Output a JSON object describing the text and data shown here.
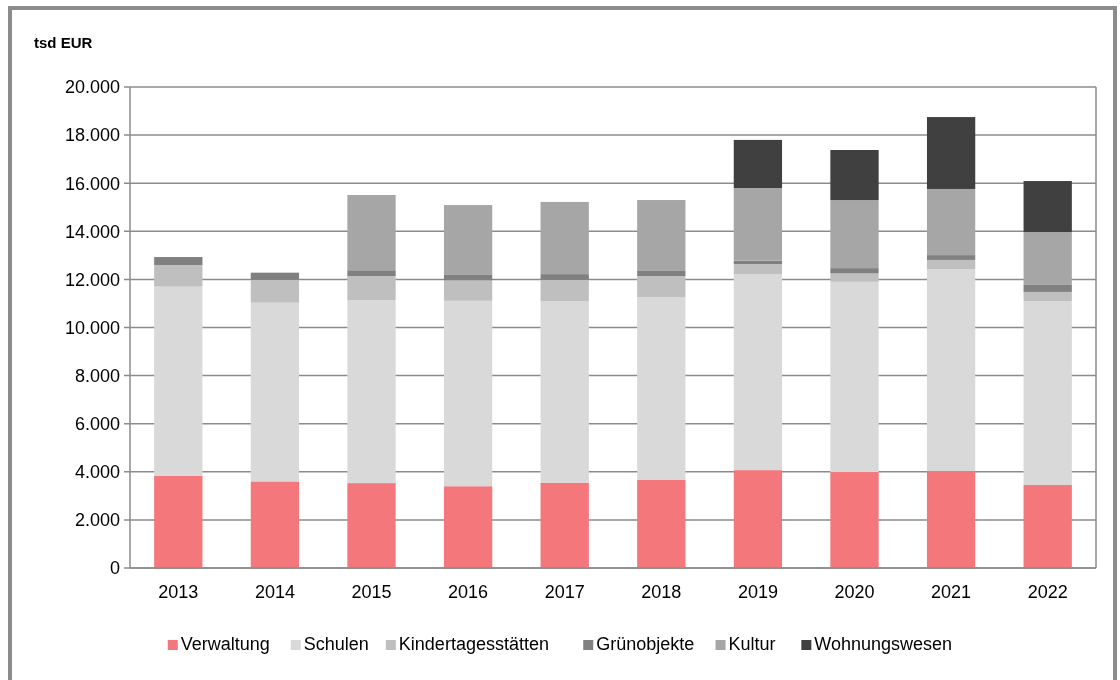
{
  "chart_data": {
    "type": "bar",
    "stacked": true,
    "ylabel": "tsd EUR",
    "categories": [
      "2013",
      "2014",
      "2015",
      "2016",
      "2017",
      "2018",
      "2019",
      "2020",
      "2021",
      "2022"
    ],
    "series": [
      {
        "name": "Verwaltung",
        "color": "#f4777b",
        "values": [
          3840,
          3600,
          3530,
          3400,
          3550,
          3660,
          4070,
          3990,
          4030,
          3450
        ]
      },
      {
        "name": "Schulen",
        "color": "#d9d9d9",
        "values": [
          7860,
          7430,
          7610,
          7710,
          7550,
          7610,
          8150,
          7910,
          8400,
          7650
        ]
      },
      {
        "name": "Kindertagesstätten",
        "color": "#bfbfbf",
        "values": [
          900,
          950,
          1000,
          850,
          880,
          870,
          420,
          350,
          380,
          380
        ]
      },
      {
        "name": "Grünobjekte",
        "color": "#808080",
        "values": [
          330,
          300,
          240,
          250,
          240,
          210,
          140,
          220,
          200,
          290
        ]
      },
      {
        "name": "Kultur",
        "color": "#a6a6a6",
        "values": [
          0,
          0,
          3130,
          2880,
          3000,
          2950,
          3020,
          2830,
          2750,
          2200
        ]
      },
      {
        "name": "Wohnungswesen",
        "color": "#404040",
        "values": [
          0,
          0,
          0,
          0,
          0,
          0,
          2000,
          2080,
          2990,
          2120
        ]
      }
    ],
    "ylim": [
      0,
      20000
    ],
    "yticks": [
      {
        "value": 0,
        "label": "0"
      },
      {
        "value": 2000,
        "label": "2.000"
      },
      {
        "value": 4000,
        "label": "4.000"
      },
      {
        "value": 6000,
        "label": "6.000"
      },
      {
        "value": 8000,
        "label": "8.000"
      },
      {
        "value": 10000,
        "label": "10.000"
      },
      {
        "value": 12000,
        "label": "12.000"
      },
      {
        "value": 14000,
        "label": "14.000"
      },
      {
        "value": 16000,
        "label": "16.000"
      },
      {
        "value": 18000,
        "label": "18.000"
      },
      {
        "value": 20000,
        "label": "20.000"
      }
    ],
    "grid": "y",
    "legend": "bottom"
  }
}
